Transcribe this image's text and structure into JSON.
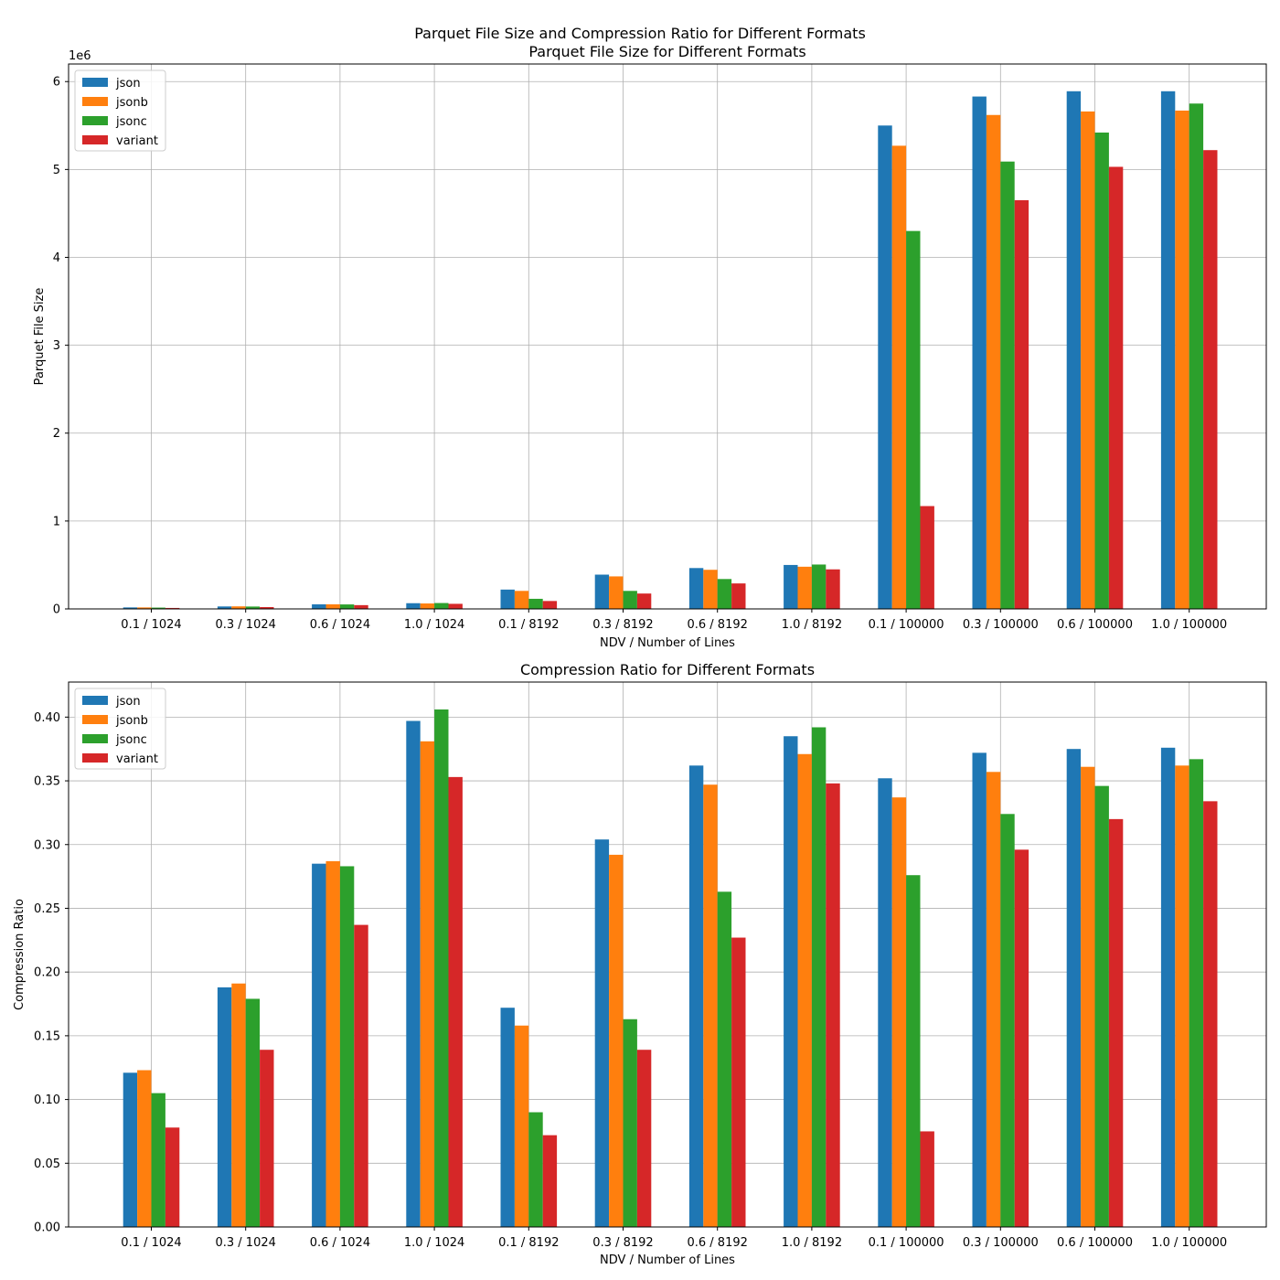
{
  "figure": {
    "suptitle": "Parquet File Size and Compression Ratio for Different Formats"
  },
  "colors": {
    "json": "#1f77b4",
    "jsonb": "#ff7f0e",
    "jsonc": "#2ca02c",
    "variant": "#d62728",
    "grid": "#b0b0b0"
  },
  "chart_data": [
    {
      "type": "bar",
      "title": "Parquet File Size for Different Formats",
      "xlabel": "NDV / Number of Lines",
      "ylabel": "Parquet File Size",
      "y_offset_label": "1e6",
      "ylim": [
        0,
        6200000
      ],
      "yticks": [
        0,
        1000000,
        2000000,
        3000000,
        4000000,
        5000000,
        6000000
      ],
      "ytick_labels": [
        "0",
        "1",
        "2",
        "3",
        "4",
        "5",
        "6"
      ],
      "grid": true,
      "legend_position": "upper left",
      "categories": [
        "0.1 / 1024",
        "0.3 / 1024",
        "0.6 / 1024",
        "1.0 / 1024",
        "0.1 / 8192",
        "0.3 / 8192",
        "0.6 / 8192",
        "1.0 / 8192",
        "0.1 / 100000",
        "0.3 / 100000",
        "0.6 / 100000",
        "1.0 / 100000"
      ],
      "series": [
        {
          "name": "json",
          "color": "#1f77b4",
          "values": [
            17000,
            28000,
            52000,
            65000,
            220000,
            390000,
            465000,
            500000,
            5500000,
            5830000,
            5890000,
            5890000
          ]
        },
        {
          "name": "jsonb",
          "color": "#ff7f0e",
          "values": [
            17000,
            29000,
            52000,
            62000,
            205000,
            370000,
            445000,
            480000,
            5270000,
            5620000,
            5660000,
            5670000
          ]
        },
        {
          "name": "jsonc",
          "color": "#2ca02c",
          "values": [
            15000,
            27000,
            51000,
            67000,
            115000,
            205000,
            340000,
            505000,
            4300000,
            5090000,
            5420000,
            5750000
          ]
        },
        {
          "name": "variant",
          "color": "#d62728",
          "values": [
            11000,
            21000,
            43000,
            58000,
            90000,
            175000,
            290000,
            450000,
            1170000,
            4650000,
            5030000,
            5220000
          ]
        }
      ]
    },
    {
      "type": "bar",
      "title": "Compression Ratio for Different Formats",
      "xlabel": "NDV / Number of Lines",
      "ylabel": "Compression Ratio",
      "ylim": [
        0,
        0.4275
      ],
      "yticks": [
        0,
        0.05,
        0.1,
        0.15,
        0.2,
        0.25,
        0.3,
        0.35,
        0.4
      ],
      "ytick_labels": [
        "0.00",
        "0.05",
        "0.10",
        "0.15",
        "0.20",
        "0.25",
        "0.30",
        "0.35",
        "0.40"
      ],
      "grid": true,
      "legend_position": "upper left",
      "categories": [
        "0.1 / 1024",
        "0.3 / 1024",
        "0.6 / 1024",
        "1.0 / 1024",
        "0.1 / 8192",
        "0.3 / 8192",
        "0.6 / 8192",
        "1.0 / 8192",
        "0.1 / 100000",
        "0.3 / 100000",
        "0.6 / 100000",
        "1.0 / 100000"
      ],
      "series": [
        {
          "name": "json",
          "color": "#1f77b4",
          "values": [
            0.121,
            0.188,
            0.285,
            0.397,
            0.172,
            0.304,
            0.362,
            0.385,
            0.352,
            0.372,
            0.375,
            0.376
          ]
        },
        {
          "name": "jsonb",
          "color": "#ff7f0e",
          "values": [
            0.123,
            0.191,
            0.287,
            0.381,
            0.158,
            0.292,
            0.347,
            0.371,
            0.337,
            0.357,
            0.361,
            0.362
          ]
        },
        {
          "name": "jsonc",
          "color": "#2ca02c",
          "values": [
            0.105,
            0.179,
            0.283,
            0.406,
            0.09,
            0.163,
            0.263,
            0.392,
            0.276,
            0.324,
            0.346,
            0.367
          ]
        },
        {
          "name": "variant",
          "color": "#d62728",
          "values": [
            0.078,
            0.139,
            0.237,
            0.353,
            0.072,
            0.139,
            0.227,
            0.348,
            0.075,
            0.296,
            0.32,
            0.334
          ]
        }
      ]
    }
  ]
}
